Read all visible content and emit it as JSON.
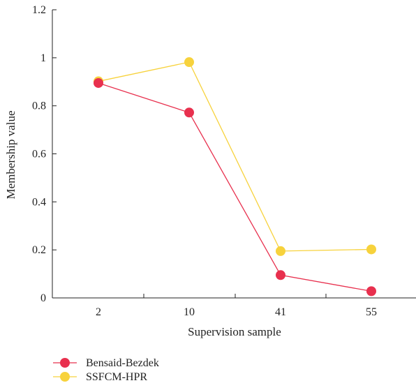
{
  "chart_data": {
    "type": "line",
    "categories": [
      "2",
      "10",
      "41",
      "55"
    ],
    "xlabel": "Supervision sample",
    "ylabel": "Membership value",
    "ylim": [
      0,
      1.2
    ],
    "yticks": [
      "0",
      "0.2",
      "0.4",
      "0.6",
      "0.8",
      "1",
      "1.2"
    ],
    "grid": false,
    "legend_position": "bottom-left",
    "series": [
      {
        "name": "Bensaid-Bezdek",
        "color": "#e8304e",
        "values": [
          0.895,
          0.772,
          0.095,
          0.028
        ]
      },
      {
        "name": "SSFCM-HPR",
        "color": "#f7d23c",
        "values": [
          0.902,
          0.982,
          0.195,
          0.202
        ]
      }
    ]
  }
}
